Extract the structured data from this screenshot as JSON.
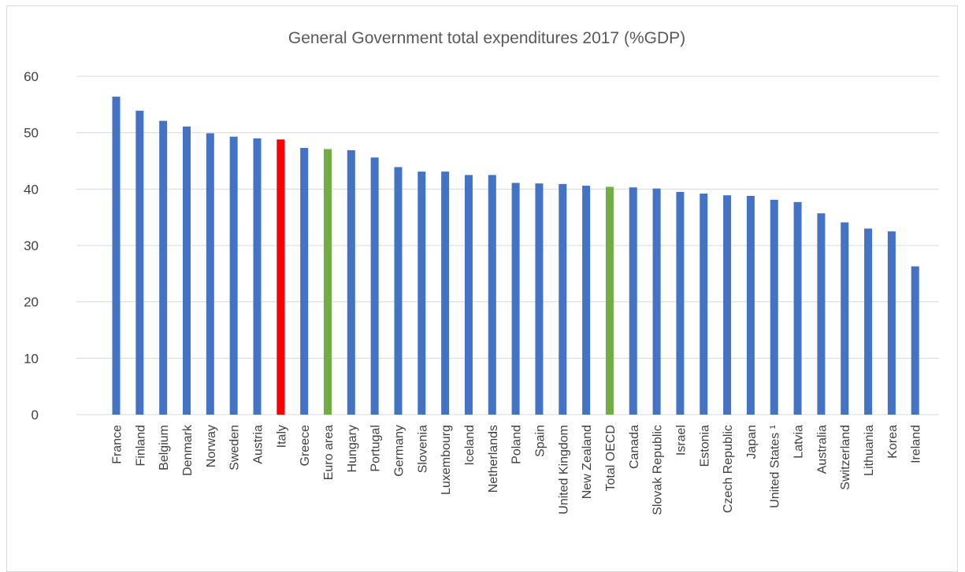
{
  "chart_data": {
    "type": "bar",
    "title": "General Government total expenditures 2017 (%GDP)",
    "xlabel": "",
    "ylabel": "",
    "ylim": [
      0,
      60
    ],
    "yticks": [
      "0",
      "10",
      "20",
      "30",
      "40",
      "50",
      "60"
    ],
    "grid": true,
    "legend": "none",
    "colors": {
      "default": "#4472C4",
      "highlight_italy": "#FF0000",
      "highlight_aggregate": "#70AD47"
    },
    "categories": [
      "France",
      "Finland",
      "Belgium",
      "Denmark",
      "Norway",
      "Sweden",
      "Austria",
      "Italy",
      "Greece",
      "Euro area",
      "Hungary",
      "Portugal",
      "Germany",
      "Slovenia",
      "Luxembourg",
      "Iceland",
      "Netherlands",
      "Poland",
      "Spain",
      "United Kingdom",
      "New Zealand",
      "Total OECD",
      "Canada",
      "Slovak Republic",
      "Israel",
      "Estonia",
      "Czech Republic",
      "Japan",
      "United States ¹",
      "Latvia",
      "Australia",
      "Switzerland",
      "Lithuania",
      "Korea",
      "Ireland"
    ],
    "values": [
      56.4,
      53.9,
      52.1,
      51.1,
      49.9,
      49.3,
      49.0,
      48.8,
      47.3,
      47.1,
      46.9,
      45.6,
      43.9,
      43.1,
      43.1,
      42.5,
      42.5,
      41.1,
      41.0,
      40.9,
      40.6,
      40.4,
      40.3,
      40.1,
      39.5,
      39.2,
      38.9,
      38.8,
      38.1,
      37.7,
      35.7,
      34.1,
      33.0,
      32.5,
      26.3
    ],
    "bar_colors": [
      "#4472C4",
      "#4472C4",
      "#4472C4",
      "#4472C4",
      "#4472C4",
      "#4472C4",
      "#4472C4",
      "#FF0000",
      "#4472C4",
      "#70AD47",
      "#4472C4",
      "#4472C4",
      "#4472C4",
      "#4472C4",
      "#4472C4",
      "#4472C4",
      "#4472C4",
      "#4472C4",
      "#4472C4",
      "#4472C4",
      "#4472C4",
      "#70AD47",
      "#4472C4",
      "#4472C4",
      "#4472C4",
      "#4472C4",
      "#4472C4",
      "#4472C4",
      "#4472C4",
      "#4472C4",
      "#4472C4",
      "#4472C4",
      "#4472C4",
      "#4472C4",
      "#4472C4"
    ]
  }
}
